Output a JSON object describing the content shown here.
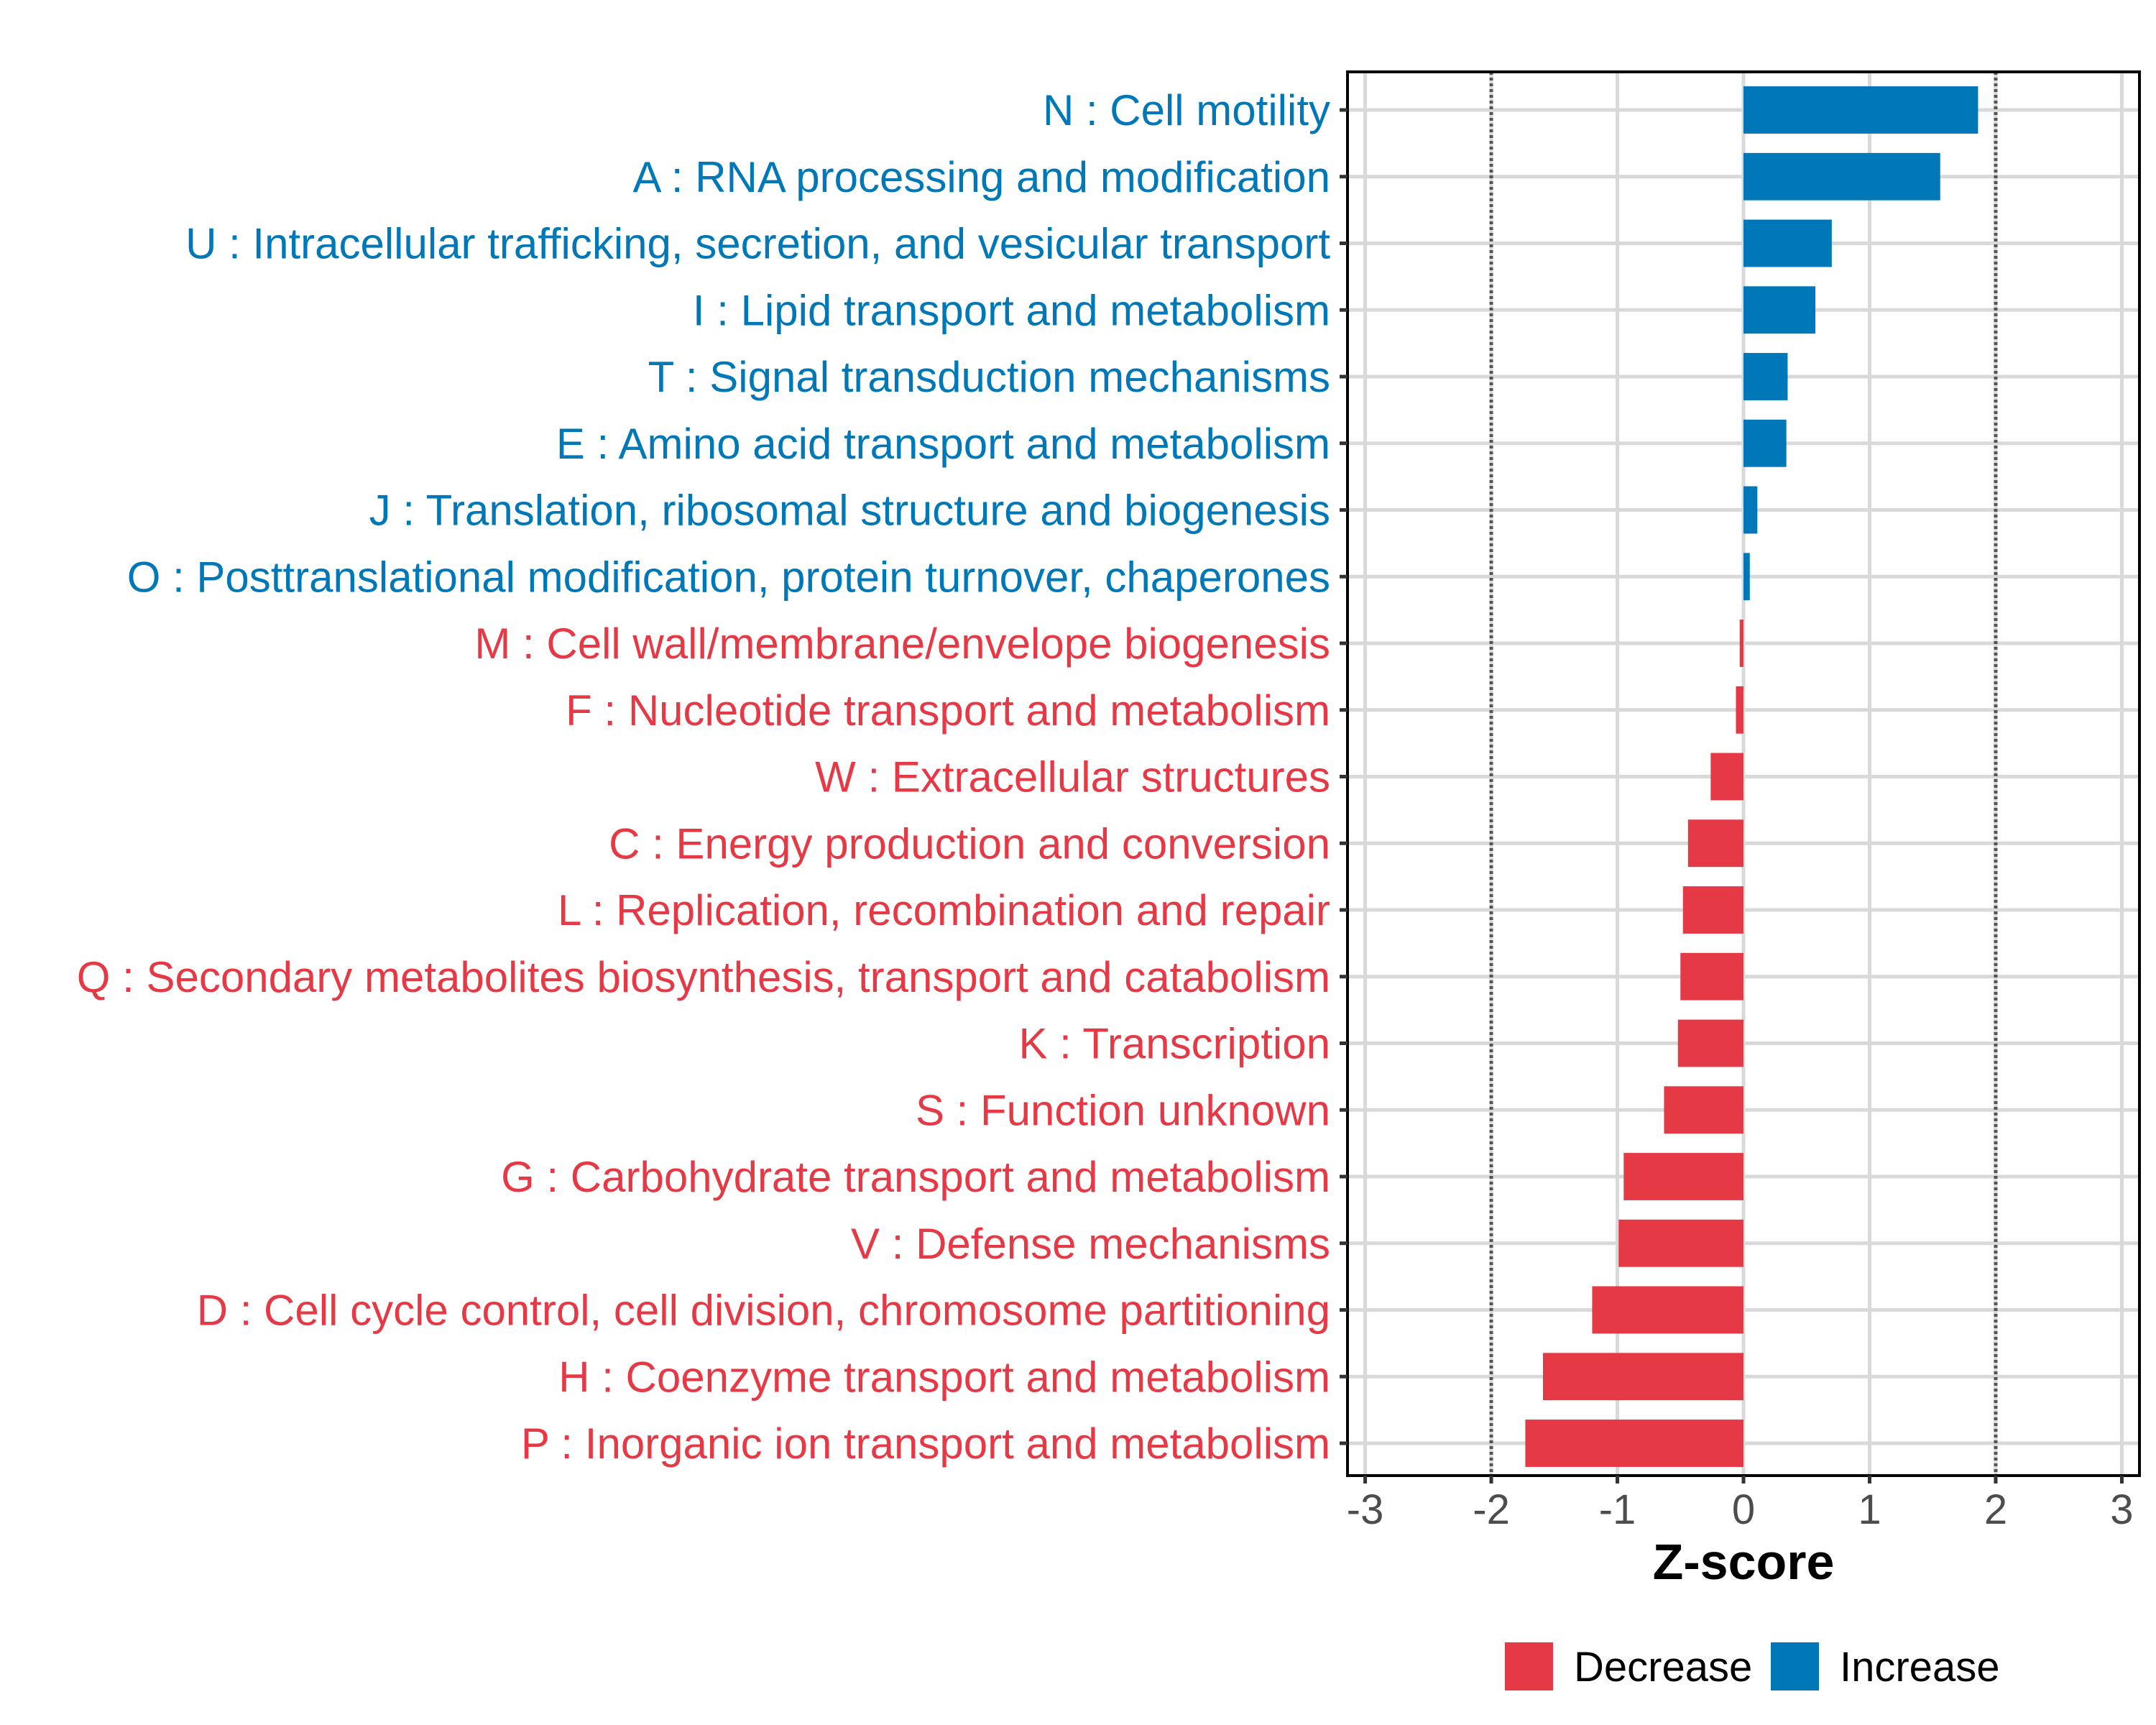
{
  "chart_data": {
    "type": "bar",
    "orientation": "horizontal",
    "title": "",
    "xlabel": "Z-score",
    "ylabel": "",
    "xlim": [
      -3.14,
      3.14
    ],
    "xticks": [
      -3,
      -2,
      -1,
      0,
      1,
      2,
      3
    ],
    "xtick_labels": [
      "-3",
      "-2",
      "-1",
      "0",
      "1",
      "2",
      "3"
    ],
    "reference_lines": [
      -2,
      2
    ],
    "grid": true,
    "legend": {
      "position": "bottom",
      "entries": [
        {
          "label": "Decrease",
          "color": "#e63946"
        },
        {
          "label": "Increase",
          "color": "#0077b6"
        }
      ]
    },
    "categories": [
      "N : Cell motility",
      "A : RNA processing and modification",
      "U : Intracellular trafficking, secretion, and vesicular transport",
      "I : Lipid transport and metabolism",
      "T : Signal transduction mechanisms",
      "E : Amino acid transport and metabolism",
      "J : Translation, ribosomal structure and biogenesis",
      "O : Posttranslational modification, protein turnover, chaperones",
      "M : Cell wall/membrane/envelope biogenesis",
      "F : Nucleotide transport and metabolism",
      "W : Extracellular structures",
      "C : Energy production and conversion",
      "L : Replication, recombination and repair",
      "Q : Secondary metabolites biosynthesis, transport and catabolism",
      "K : Transcription",
      "S : Function unknown",
      "G : Carbohydrate transport and metabolism",
      "V : Defense mechanisms",
      "D : Cell cycle control, cell division, chromosome partitioning",
      "H : Coenzyme transport and metabolism",
      "P : Inorganic ion transport and metabolism"
    ],
    "values": [
      1.86,
      1.56,
      0.7,
      0.57,
      0.35,
      0.34,
      0.11,
      0.05,
      -0.03,
      -0.06,
      -0.26,
      -0.44,
      -0.48,
      -0.5,
      -0.52,
      -0.63,
      -0.95,
      -0.99,
      -1.2,
      -1.59,
      -1.73
    ],
    "groups": [
      "Increase",
      "Increase",
      "Increase",
      "Increase",
      "Increase",
      "Increase",
      "Increase",
      "Increase",
      "Decrease",
      "Decrease",
      "Decrease",
      "Decrease",
      "Decrease",
      "Decrease",
      "Decrease",
      "Decrease",
      "Decrease",
      "Decrease",
      "Decrease",
      "Decrease",
      "Decrease"
    ],
    "colors": {
      "Increase": "#0077b6",
      "Decrease": "#e63946"
    }
  }
}
